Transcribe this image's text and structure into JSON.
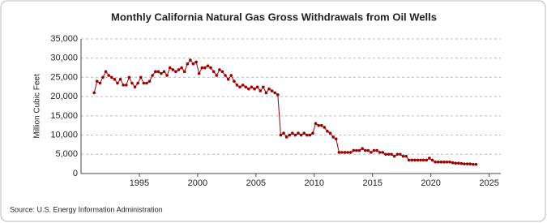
{
  "chart_data": {
    "type": "line",
    "title": "Monthly California Natural Gas Gross Withdrawals from Oil Wells",
    "y_label": "Million Cubic Feet",
    "source": "Source: U.S. Energy Information Administration",
    "grid": true,
    "x": [
      1991.125,
      1991.375,
      1991.625,
      1991.875,
      1992.125,
      1992.375,
      1992.625,
      1992.875,
      1993.125,
      1993.375,
      1993.625,
      1993.875,
      1994.125,
      1994.375,
      1994.625,
      1994.875,
      1995.125,
      1995.375,
      1995.625,
      1995.875,
      1996.125,
      1996.375,
      1996.625,
      1996.875,
      1997.125,
      1997.375,
      1997.625,
      1997.875,
      1998.125,
      1998.375,
      1998.625,
      1998.875,
      1999.125,
      1999.375,
      1999.625,
      1999.875,
      2000.125,
      2000.375,
      2000.625,
      2000.875,
      2001.125,
      2001.375,
      2001.625,
      2001.875,
      2002.125,
      2002.375,
      2002.625,
      2002.875,
      2003.125,
      2003.375,
      2003.625,
      2003.875,
      2004.125,
      2004.375,
      2004.625,
      2004.875,
      2005.125,
      2005.375,
      2005.625,
      2005.875,
      2006.125,
      2006.375,
      2006.625,
      2006.875,
      2007.125,
      2007.375,
      2007.625,
      2007.875,
      2008.125,
      2008.375,
      2008.625,
      2008.875,
      2009.125,
      2009.375,
      2009.625,
      2009.875,
      2010.125,
      2010.375,
      2010.625,
      2010.875,
      2011.125,
      2011.375,
      2011.625,
      2011.875,
      2012.125,
      2012.375,
      2012.625,
      2012.875,
      2013.125,
      2013.375,
      2013.625,
      2013.875,
      2014.125,
      2014.375,
      2014.625,
      2014.875,
      2015.125,
      2015.375,
      2015.625,
      2015.875,
      2016.125,
      2016.375,
      2016.625,
      2016.875,
      2017.125,
      2017.375,
      2017.625,
      2017.875,
      2018.125,
      2018.375,
      2018.625,
      2018.875,
      2019.125,
      2019.375,
      2019.625,
      2019.875,
      2020.125,
      2020.375,
      2020.625,
      2020.875,
      2021.125,
      2021.375,
      2021.625,
      2021.875,
      2022.125,
      2022.375,
      2022.625,
      2022.875,
      2023.125,
      2023.375,
      2023.625,
      2023.875
    ],
    "series": [
      {
        "color": "#990000",
        "values": [
          21000,
          24000,
          23500,
          25000,
          26500,
          25500,
          25000,
          24500,
          23500,
          24500,
          23000,
          23000,
          25000,
          23500,
          22500,
          23500,
          25000,
          23500,
          23500,
          24000,
          25500,
          26500,
          26500,
          26000,
          26500,
          25500,
          27500,
          27000,
          26500,
          27000,
          27500,
          26500,
          28500,
          29500,
          28500,
          29000,
          26000,
          27500,
          27500,
          28000,
          27500,
          26500,
          25500,
          27000,
          26500,
          25500,
          24500,
          25500,
          24000,
          23000,
          22500,
          23000,
          22500,
          22000,
          22500,
          22000,
          22500,
          21500,
          22500,
          21000,
          22000,
          21500,
          21000,
          20500,
          10000,
          10500,
          9500,
          10000,
          10500,
          10000,
          10500,
          10000,
          10500,
          10000,
          10000,
          10500,
          13000,
          12500,
          12500,
          12000,
          11000,
          10500,
          9500,
          9000,
          5500,
          5500,
          5500,
          5500,
          5500,
          6000,
          6000,
          6000,
          6500,
          6000,
          6000,
          5500,
          6000,
          6000,
          5500,
          5500,
          5000,
          5000,
          5000,
          4500,
          5000,
          5000,
          4500,
          4500,
          3500,
          3500,
          3500,
          3500,
          3500,
          3500,
          3500,
          4000,
          3500,
          3000,
          3000,
          3000,
          3000,
          3000,
          3000,
          2800,
          2700,
          2700,
          2600,
          2500,
          2500,
          2500,
          2400,
          2400
        ]
      }
    ],
    "xlim": [
      1990,
      2026
    ],
    "xticks": [
      1995,
      2000,
      2005,
      2010,
      2015,
      2020,
      2025
    ],
    "ylim": [
      0,
      35000
    ],
    "yticks": [
      0,
      {
        "value": 5000,
        "label": "5,000"
      },
      {
        "value": 10000,
        "label": "10,000"
      },
      {
        "value": 15000,
        "label": "15,000"
      },
      {
        "value": 20000,
        "label": "20,000"
      },
      {
        "value": 25000,
        "label": "25,000"
      },
      {
        "value": 30000,
        "label": "30,000"
      },
      {
        "value": 35000,
        "label": "35,000"
      }
    ]
  }
}
